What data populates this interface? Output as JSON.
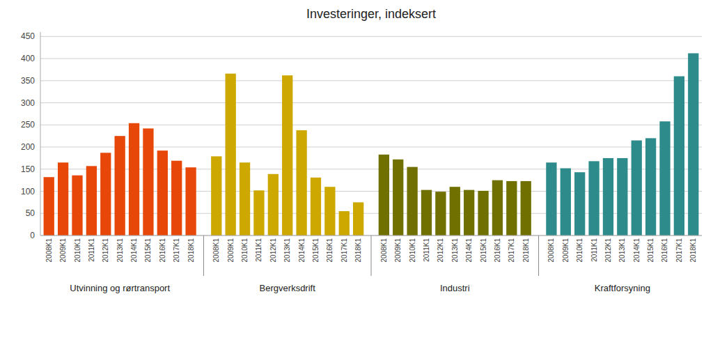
{
  "chart_data": {
    "type": "bar",
    "title": "Investeringer, indeksert",
    "categories": [
      "2008K1",
      "2009K1",
      "2010K1",
      "2011K1",
      "2012K1",
      "2013K1",
      "2014K1",
      "2015K1",
      "2016K1",
      "2017K1",
      "2018K1"
    ],
    "series": [
      {
        "name": "Utvinning og rørtransport",
        "color": "#E8470A",
        "values": [
          132,
          165,
          136,
          157,
          187,
          225,
          254,
          242,
          192,
          169,
          154
        ]
      },
      {
        "name": "Bergverksdrift",
        "color": "#CCA800",
        "values": [
          179,
          366,
          165,
          102,
          139,
          362,
          238,
          131,
          110,
          55,
          75
        ]
      },
      {
        "name": "Industri",
        "color": "#707000",
        "values": [
          183,
          172,
          155,
          103,
          99,
          110,
          103,
          101,
          125,
          123,
          123
        ]
      },
      {
        "name": "Kraftforsyning",
        "color": "#2E8B8B",
        "values": [
          165,
          152,
          143,
          168,
          175,
          175,
          215,
          220,
          258,
          360,
          412
        ]
      }
    ],
    "ylim": [
      0,
      460
    ],
    "yticks": [
      0,
      50,
      100,
      150,
      200,
      250,
      300,
      350,
      400,
      450
    ],
    "grid": true
  }
}
